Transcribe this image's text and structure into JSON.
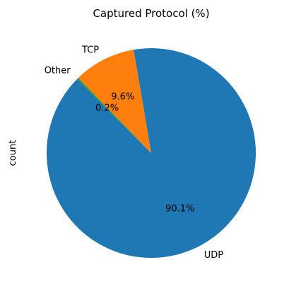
{
  "chart_data": {
    "type": "pie",
    "title": "Captured Protocol (%)",
    "ylabel": "count",
    "start_angle_deg": 135,
    "direction": "counterclockwise",
    "slices": [
      {
        "label": "UDP",
        "value": 90.1,
        "pct_label": "90.1%",
        "color": "#1f77b4"
      },
      {
        "label": "TCP",
        "value": 9.6,
        "pct_label": "9.6%",
        "color": "#ff7f0e"
      },
      {
        "label": "Other",
        "value": 0.2,
        "pct_label": "0.2%",
        "color": "#2ca02c"
      }
    ]
  }
}
